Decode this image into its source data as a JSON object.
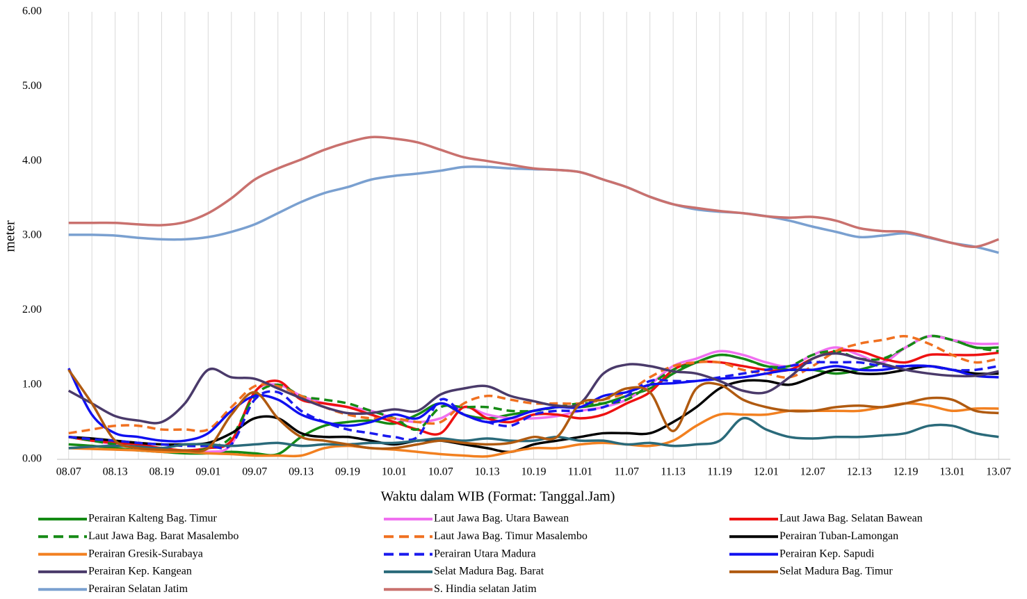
{
  "chart_data": {
    "type": "line",
    "y_label": "meter",
    "x_label": "Waktu dalam WIB (Format: Tanggal.Jam)",
    "categories": [
      "08.07",
      null,
      "08.13",
      null,
      "08.19",
      null,
      "09.01",
      null,
      "09.07",
      null,
      "09.13",
      null,
      "09.19",
      null,
      "10.01",
      null,
      "10.07",
      null,
      "10.13",
      null,
      "10.19",
      null,
      "11.01",
      null,
      "11.07",
      null,
      "11.13",
      null,
      "11.19",
      null,
      "12.01",
      null,
      "12.07",
      null,
      "12.13",
      null,
      "12.19",
      null,
      "13.01",
      null,
      "13.07"
    ],
    "ylim": [
      0,
      6
    ],
    "yticks": [
      {
        "value": 0,
        "label": "0.00"
      },
      {
        "value": 1,
        "label": "1.00"
      },
      {
        "value": 2,
        "label": "2.00"
      },
      {
        "value": 3,
        "label": "3.00"
      },
      {
        "value": 4,
        "label": "4.00"
      },
      {
        "value": 5,
        "label": "5.00"
      },
      {
        "value": 6,
        "label": "6.00"
      }
    ],
    "grid": "vertical",
    "series": [
      {
        "name": "Perairan Kalteng Bag. Timur",
        "color": "#158a15",
        "dash": false,
        "values": [
          0.2,
          0.18,
          0.15,
          0.12,
          0.1,
          0.08,
          0.08,
          0.1,
          0.08,
          0.07,
          0.3,
          0.45,
          0.5,
          0.52,
          0.48,
          0.6,
          0.75,
          0.6,
          0.55,
          0.6,
          0.65,
          0.7,
          0.7,
          0.75,
          0.85,
          0.95,
          1.15,
          1.3,
          1.4,
          1.35,
          1.25,
          1.2,
          1.2,
          1.15,
          1.2,
          1.3,
          1.5,
          1.65,
          1.6,
          1.5,
          1.5
        ]
      },
      {
        "name": "Laut Jawa Bag. Utara Bawean",
        "color": "#f070f0",
        "dash": false,
        "values": [
          0.3,
          0.25,
          0.2,
          0.15,
          0.12,
          0.1,
          0.1,
          0.2,
          0.9,
          1.0,
          0.85,
          0.75,
          0.7,
          0.65,
          0.55,
          0.5,
          0.55,
          0.7,
          0.6,
          0.55,
          0.55,
          0.58,
          0.65,
          0.7,
          0.8,
          1.0,
          1.25,
          1.35,
          1.45,
          1.4,
          1.3,
          1.25,
          1.4,
          1.5,
          1.4,
          1.3,
          1.5,
          1.65,
          1.6,
          1.55,
          1.55
        ]
      },
      {
        "name": "Laut Jawa Bag. Selatan Bawean",
        "color": "#ee1111",
        "dash": false,
        "values": [
          0.3,
          0.25,
          0.22,
          0.2,
          0.15,
          0.12,
          0.15,
          0.25,
          0.9,
          1.05,
          0.8,
          0.75,
          0.7,
          0.6,
          0.5,
          0.4,
          0.35,
          0.7,
          0.55,
          0.5,
          0.6,
          0.6,
          0.55,
          0.6,
          0.75,
          0.9,
          1.2,
          1.3,
          1.3,
          1.25,
          1.2,
          1.2,
          1.35,
          1.45,
          1.45,
          1.35,
          1.3,
          1.4,
          1.4,
          1.4,
          1.43
        ]
      },
      {
        "name": "Laut Jawa Bag. Barat Masalembo",
        "color": "#158a15",
        "dash": true,
        "values": [
          0.3,
          0.25,
          0.2,
          0.15,
          0.12,
          0.1,
          0.15,
          0.3,
          0.85,
          1.0,
          0.85,
          0.8,
          0.75,
          0.65,
          0.55,
          0.4,
          0.7,
          0.7,
          0.7,
          0.65,
          0.65,
          0.7,
          0.75,
          0.75,
          0.8,
          1.0,
          1.2,
          1.3,
          1.4,
          1.35,
          1.25,
          1.25,
          1.4,
          1.45,
          1.35,
          1.35,
          1.5,
          1.65,
          1.6,
          1.5,
          1.45
        ]
      },
      {
        "name": "Laut Jawa Bag. Timur Masalembo",
        "color": "#f07020",
        "dash": true,
        "values": [
          0.35,
          0.4,
          0.45,
          0.45,
          0.4,
          0.4,
          0.4,
          0.7,
          0.98,
          0.98,
          0.85,
          0.7,
          0.6,
          0.55,
          0.55,
          0.5,
          0.5,
          0.75,
          0.85,
          0.8,
          0.75,
          0.75,
          0.75,
          0.8,
          0.9,
          1.1,
          1.25,
          1.3,
          1.3,
          1.2,
          1.15,
          1.1,
          1.25,
          1.45,
          1.55,
          1.6,
          1.65,
          1.55,
          1.4,
          1.3,
          1.35
        ]
      },
      {
        "name": "Perairan Tuban-Lamongan",
        "color": "#000000",
        "dash": false,
        "values": [
          0.3,
          0.28,
          0.25,
          0.22,
          0.2,
          0.2,
          0.22,
          0.35,
          0.55,
          0.55,
          0.35,
          0.3,
          0.3,
          0.25,
          0.2,
          0.25,
          0.25,
          0.2,
          0.15,
          0.1,
          0.2,
          0.25,
          0.3,
          0.35,
          0.35,
          0.35,
          0.5,
          0.7,
          0.95,
          1.05,
          1.05,
          1.0,
          1.1,
          1.2,
          1.15,
          1.15,
          1.2,
          1.25,
          1.2,
          1.15,
          1.15
        ]
      },
      {
        "name": "Perairan Gresik-Surabaya",
        "color": "#f28020",
        "dash": false,
        "values": [
          0.15,
          0.14,
          0.13,
          0.12,
          0.1,
          0.1,
          0.08,
          0.07,
          0.05,
          0.05,
          0.05,
          0.15,
          0.18,
          0.15,
          0.13,
          0.1,
          0.07,
          0.05,
          0.04,
          0.1,
          0.15,
          0.15,
          0.2,
          0.22,
          0.2,
          0.18,
          0.25,
          0.45,
          0.6,
          0.6,
          0.6,
          0.65,
          0.65,
          0.65,
          0.65,
          0.7,
          0.75,
          0.72,
          0.65,
          0.68,
          0.68
        ]
      },
      {
        "name": "Perairan Utara Madura",
        "color": "#1a1aee",
        "dash": true,
        "values": [
          0.3,
          0.27,
          0.25,
          0.22,
          0.2,
          0.18,
          0.18,
          0.2,
          0.8,
          0.9,
          0.65,
          0.5,
          0.4,
          0.35,
          0.3,
          0.3,
          0.8,
          0.6,
          0.5,
          0.45,
          0.6,
          0.65,
          0.65,
          0.7,
          0.85,
          1.05,
          1.05,
          1.05,
          1.1,
          1.15,
          1.2,
          1.25,
          1.3,
          1.3,
          1.3,
          1.25,
          1.25,
          1.25,
          1.2,
          1.2,
          1.25
        ]
      },
      {
        "name": "Perairan Kep. Sapudi",
        "color": "#1010f0",
        "dash": false,
        "values": [
          1.22,
          0.6,
          0.35,
          0.3,
          0.25,
          0.25,
          0.35,
          0.65,
          0.85,
          0.8,
          0.6,
          0.5,
          0.45,
          0.5,
          0.6,
          0.55,
          0.75,
          0.6,
          0.5,
          0.55,
          0.65,
          0.7,
          0.7,
          0.85,
          0.9,
          1.0,
          1.02,
          1.05,
          1.08,
          1.1,
          1.15,
          1.2,
          1.2,
          1.25,
          1.2,
          1.2,
          1.25,
          1.25,
          1.2,
          1.12,
          1.1
        ]
      },
      {
        "name": "Perairan Kep. Kangean",
        "color": "#4a3a6a",
        "dash": false,
        "values": [
          0.92,
          0.75,
          0.58,
          0.52,
          0.5,
          0.75,
          1.2,
          1.1,
          1.08,
          0.95,
          0.82,
          0.7,
          0.62,
          0.62,
          0.67,
          0.65,
          0.87,
          0.95,
          0.98,
          0.85,
          0.78,
          0.72,
          0.75,
          1.15,
          1.27,
          1.25,
          1.18,
          1.15,
          1.05,
          0.92,
          0.9,
          1.1,
          1.35,
          1.42,
          1.35,
          1.28,
          1.2,
          1.15,
          1.12,
          1.12,
          1.18
        ]
      },
      {
        "name": "Selat Madura Bag. Barat",
        "color": "#2a6a7a",
        "dash": false,
        "values": [
          0.15,
          0.17,
          0.18,
          0.17,
          0.15,
          0.2,
          0.2,
          0.18,
          0.2,
          0.22,
          0.18,
          0.2,
          0.2,
          0.22,
          0.22,
          0.25,
          0.28,
          0.25,
          0.28,
          0.25,
          0.25,
          0.3,
          0.25,
          0.25,
          0.2,
          0.22,
          0.18,
          0.2,
          0.25,
          0.55,
          0.4,
          0.3,
          0.28,
          0.3,
          0.3,
          0.32,
          0.35,
          0.45,
          0.45,
          0.35,
          0.3
        ]
      },
      {
        "name": "Selat Madura Bag. Timur",
        "color": "#b05a10",
        "dash": false,
        "values": [
          1.2,
          0.75,
          0.25,
          0.15,
          0.13,
          0.12,
          0.15,
          0.6,
          0.9,
          0.55,
          0.3,
          0.25,
          0.2,
          0.15,
          0.15,
          0.2,
          0.25,
          0.22,
          0.2,
          0.22,
          0.3,
          0.3,
          0.75,
          0.8,
          0.95,
          0.9,
          0.38,
          0.95,
          1.0,
          0.8,
          0.7,
          0.65,
          0.65,
          0.7,
          0.72,
          0.7,
          0.75,
          0.82,
          0.8,
          0.65,
          0.62
        ]
      },
      {
        "name": "Perairan Selatan Jatim",
        "color": "#7aa0d0",
        "dash": false,
        "values": [
          3.01,
          3.01,
          3.0,
          2.97,
          2.95,
          2.95,
          2.98,
          3.05,
          3.15,
          3.3,
          3.45,
          3.57,
          3.65,
          3.75,
          3.8,
          3.83,
          3.87,
          3.92,
          3.92,
          3.9,
          3.89,
          3.88,
          3.85,
          3.75,
          3.65,
          3.52,
          3.42,
          3.35,
          3.32,
          3.3,
          3.26,
          3.2,
          3.12,
          3.05,
          2.98,
          3.0,
          3.03,
          2.97,
          2.9,
          2.85,
          2.77
        ]
      },
      {
        "name": "S. Hindia selatan Jatim",
        "color": "#c9716e",
        "dash": false,
        "values": [
          3.17,
          3.17,
          3.17,
          3.15,
          3.14,
          3.18,
          3.3,
          3.5,
          3.75,
          3.9,
          4.02,
          4.15,
          4.25,
          4.32,
          4.3,
          4.25,
          4.15,
          4.05,
          4.0,
          3.95,
          3.9,
          3.88,
          3.85,
          3.75,
          3.65,
          3.52,
          3.42,
          3.37,
          3.33,
          3.3,
          3.26,
          3.24,
          3.25,
          3.2,
          3.1,
          3.06,
          3.05,
          2.98,
          2.9,
          2.85,
          2.95
        ]
      }
    ]
  }
}
